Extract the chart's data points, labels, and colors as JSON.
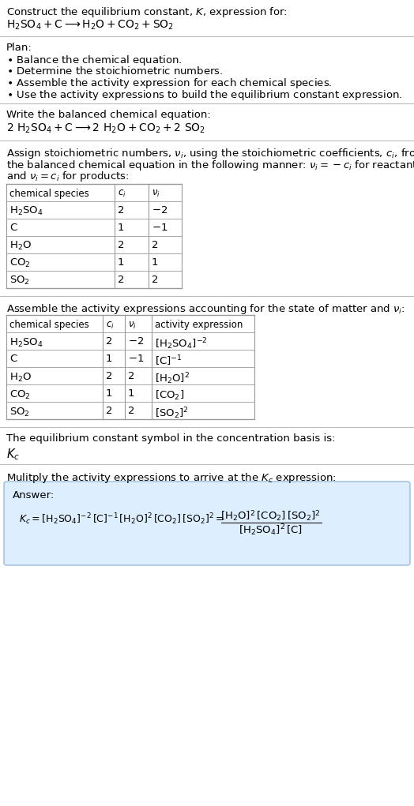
{
  "title_line1": "Construct the equilibrium constant, $K$, expression for:",
  "title_line2": "$\\mathrm{H_2SO_4 + C \\longrightarrow H_2O + CO_2 + SO_2}$",
  "plan_header": "Plan:",
  "plan_items": [
    "$\\bullet$ Balance the chemical equation.",
    "$\\bullet$ Determine the stoichiometric numbers.",
    "$\\bullet$ Assemble the activity expression for each chemical species.",
    "$\\bullet$ Use the activity expressions to build the equilibrium constant expression."
  ],
  "balanced_header": "Write the balanced chemical equation:",
  "balanced_eq": "$\\mathrm{2\\ H_2SO_4 + C \\longrightarrow 2\\ H_2O + CO_2 + 2\\ SO_2}$",
  "stoich_header_1": "Assign stoichiometric numbers, $\\nu_i$, using the stoichiometric coefficients, $c_i$, from",
  "stoich_header_2": "the balanced chemical equation in the following manner: $\\nu_i = -c_i$ for reactants",
  "stoich_header_3": "and $\\nu_i = c_i$ for products:",
  "table1_headers": [
    "chemical species",
    "$c_i$",
    "$\\nu_i$"
  ],
  "table1_rows": [
    [
      "$\\mathrm{H_2SO_4}$",
      "2",
      "$-2$"
    ],
    [
      "$\\mathrm{C}$",
      "1",
      "$-1$"
    ],
    [
      "$\\mathrm{H_2O}$",
      "2",
      "2"
    ],
    [
      "$\\mathrm{CO_2}$",
      "1",
      "1"
    ],
    [
      "$\\mathrm{SO_2}$",
      "2",
      "2"
    ]
  ],
  "activity_header": "Assemble the activity expressions accounting for the state of matter and $\\nu_i$:",
  "table2_headers": [
    "chemical species",
    "$c_i$",
    "$\\nu_i$",
    "activity expression"
  ],
  "table2_rows": [
    [
      "$\\mathrm{H_2SO_4}$",
      "2",
      "$-2$",
      "$[\\mathrm{H_2SO_4}]^{-2}$"
    ],
    [
      "$\\mathrm{C}$",
      "1",
      "$-1$",
      "$[\\mathrm{C}]^{-1}$"
    ],
    [
      "$\\mathrm{H_2O}$",
      "2",
      "2",
      "$[\\mathrm{H_2O}]^{2}$"
    ],
    [
      "$\\mathrm{CO_2}$",
      "1",
      "1",
      "$[\\mathrm{CO_2}]$"
    ],
    [
      "$\\mathrm{SO_2}$",
      "2",
      "2",
      "$[\\mathrm{SO_2}]^{2}$"
    ]
  ],
  "kc_header": "The equilibrium constant symbol in the concentration basis is:",
  "kc_symbol": "$K_c$",
  "multiply_header": "Mulitply the activity expressions to arrive at the $K_c$ expression:",
  "answer_label": "Answer:",
  "answer_eq_left": "$K_c = [\\mathrm{H_2SO_4}]^{-2}\\,[\\mathrm{C}]^{-1}\\,[\\mathrm{H_2O}]^{2}\\,[\\mathrm{CO_2}]\\,[\\mathrm{SO_2}]^{2} = $",
  "answer_eq_frac": "$\\dfrac{[\\mathrm{H_2O}]^{2}\\,[\\mathrm{CO_2}]\\,[\\mathrm{SO_2}]^{2}}{[\\mathrm{H_2SO_4}]^{2}\\,[\\mathrm{C}]}$",
  "bg_color": "#ffffff",
  "text_color": "#000000",
  "answer_box_color": "#ddeeff",
  "separator_color": "#bbbbbb",
  "font_size": 9.5,
  "small_font": 8.5
}
